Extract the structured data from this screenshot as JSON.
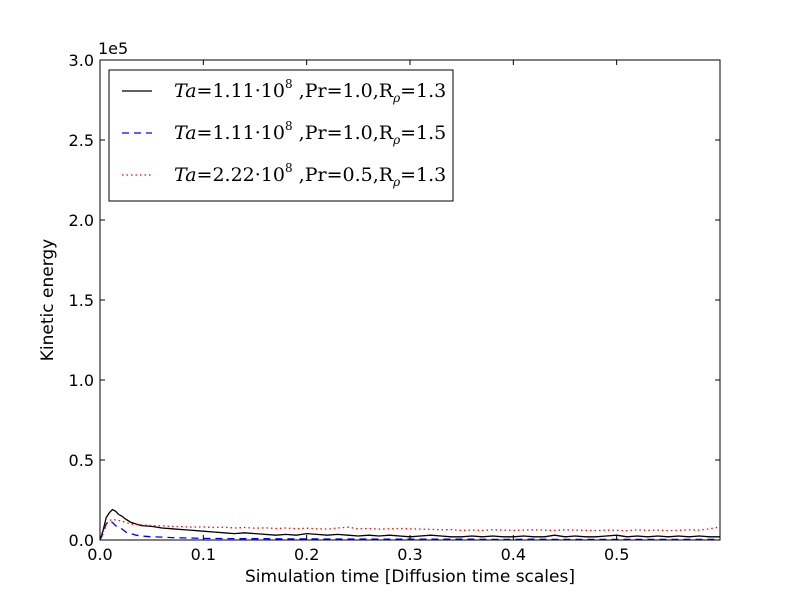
{
  "chart_data": {
    "type": "line",
    "xlabel": "Simulation time [Diffusion time scales]",
    "ylabel": "Kinetic energy",
    "offset_label": "1e5",
    "xlim": [
      0.0,
      0.6
    ],
    "ylim": [
      0.0,
      3.0
    ],
    "xticks": [
      "0.0",
      "0.1",
      "0.2",
      "0.3",
      "0.4",
      "0.5"
    ],
    "yticks": [
      "0.0",
      "0.5",
      "1.0",
      "1.5",
      "2.0",
      "2.5",
      "3.0"
    ],
    "grid": false,
    "legend_position": "upper-left",
    "series": [
      {
        "name": "Ta=1.11·10^8 ,Pr=1.0,Rρ=1.3",
        "color": "#000000",
        "style": "solid",
        "x": [
          0.0,
          0.003,
          0.006,
          0.009,
          0.012,
          0.015,
          0.018,
          0.021,
          0.025,
          0.03,
          0.035,
          0.04,
          0.05,
          0.06,
          0.07,
          0.08,
          0.09,
          0.1,
          0.11,
          0.12,
          0.13,
          0.14,
          0.15,
          0.16,
          0.17,
          0.18,
          0.19,
          0.2,
          0.21,
          0.22,
          0.23,
          0.24,
          0.25,
          0.26,
          0.27,
          0.28,
          0.29,
          0.3,
          0.31,
          0.32,
          0.33,
          0.34,
          0.35,
          0.36,
          0.37,
          0.38,
          0.39,
          0.4,
          0.41,
          0.42,
          0.43,
          0.44,
          0.45,
          0.46,
          0.47,
          0.48,
          0.49,
          0.5,
          0.51,
          0.52,
          0.53,
          0.54,
          0.55,
          0.56,
          0.57,
          0.58,
          0.59,
          0.6
        ],
        "y": [
          0.0,
          0.06,
          0.14,
          0.17,
          0.19,
          0.18,
          0.16,
          0.15,
          0.13,
          0.11,
          0.1,
          0.09,
          0.085,
          0.075,
          0.07,
          0.065,
          0.06,
          0.055,
          0.05,
          0.045,
          0.04,
          0.045,
          0.04,
          0.035,
          0.03,
          0.035,
          0.03,
          0.04,
          0.035,
          0.03,
          0.035,
          0.03,
          0.025,
          0.03,
          0.025,
          0.03,
          0.025,
          0.02,
          0.025,
          0.03,
          0.025,
          0.02,
          0.02,
          0.025,
          0.02,
          0.025,
          0.02,
          0.02,
          0.025,
          0.02,
          0.02,
          0.03,
          0.02,
          0.025,
          0.02,
          0.02,
          0.025,
          0.03,
          0.02,
          0.025,
          0.02,
          0.025,
          0.02,
          0.025,
          0.02,
          0.025,
          0.02,
          0.02
        ]
      },
      {
        "name": "Ta=1.11·10^8 ,Pr=1.0,Rρ=1.5",
        "color": "#0000ff",
        "style": "dashed",
        "x": [
          0.0,
          0.003,
          0.006,
          0.009,
          0.012,
          0.015,
          0.018,
          0.021,
          0.025,
          0.03,
          0.035,
          0.04,
          0.05,
          0.06,
          0.07,
          0.08,
          0.09,
          0.1,
          0.12,
          0.14,
          0.16,
          0.18,
          0.2,
          0.22,
          0.24,
          0.26,
          0.28,
          0.3,
          0.32,
          0.34,
          0.36,
          0.38,
          0.4,
          0.42,
          0.44,
          0.46,
          0.48,
          0.5,
          0.52,
          0.54,
          0.56,
          0.58,
          0.6
        ],
        "y": [
          0.0,
          0.04,
          0.1,
          0.12,
          0.11,
          0.09,
          0.08,
          0.07,
          0.05,
          0.04,
          0.03,
          0.025,
          0.02,
          0.018,
          0.015,
          0.013,
          0.012,
          0.01,
          0.009,
          0.008,
          0.008,
          0.007,
          0.007,
          0.006,
          0.006,
          0.006,
          0.005,
          0.005,
          0.005,
          0.005,
          0.005,
          0.004,
          0.004,
          0.005,
          0.004,
          0.004,
          0.004,
          0.004,
          0.004,
          0.004,
          0.004,
          0.004,
          0.004
        ]
      },
      {
        "name": "Ta=2.22·10^8 ,Pr=0.5,Rρ=1.3",
        "color": "#ff0000",
        "style": "dotted",
        "x": [
          0.0,
          0.003,
          0.006,
          0.009,
          0.012,
          0.015,
          0.02,
          0.025,
          0.03,
          0.04,
          0.05,
          0.06,
          0.07,
          0.08,
          0.09,
          0.1,
          0.11,
          0.12,
          0.13,
          0.14,
          0.15,
          0.16,
          0.17,
          0.18,
          0.19,
          0.2,
          0.21,
          0.22,
          0.23,
          0.24,
          0.25,
          0.26,
          0.27,
          0.28,
          0.29,
          0.3,
          0.31,
          0.32,
          0.33,
          0.34,
          0.35,
          0.36,
          0.37,
          0.38,
          0.39,
          0.4,
          0.41,
          0.42,
          0.43,
          0.44,
          0.45,
          0.46,
          0.47,
          0.48,
          0.49,
          0.5,
          0.51,
          0.52,
          0.53,
          0.54,
          0.55,
          0.56,
          0.57,
          0.58,
          0.59,
          0.6
        ],
        "y": [
          0.0,
          0.05,
          0.1,
          0.12,
          0.13,
          0.125,
          0.12,
          0.11,
          0.1,
          0.095,
          0.09,
          0.088,
          0.085,
          0.083,
          0.08,
          0.082,
          0.078,
          0.08,
          0.075,
          0.078,
          0.074,
          0.076,
          0.072,
          0.075,
          0.07,
          0.074,
          0.07,
          0.068,
          0.075,
          0.08,
          0.07,
          0.072,
          0.068,
          0.07,
          0.072,
          0.07,
          0.068,
          0.066,
          0.064,
          0.065,
          0.06,
          0.062,
          0.06,
          0.064,
          0.062,
          0.06,
          0.062,
          0.064,
          0.062,
          0.06,
          0.064,
          0.062,
          0.06,
          0.058,
          0.062,
          0.06,
          0.058,
          0.064,
          0.06,
          0.062,
          0.058,
          0.06,
          0.064,
          0.062,
          0.07,
          0.082
        ]
      }
    ],
    "legend": [
      {
        "prefix": "Ta",
        "val": "=1.11·10",
        "sup": "8",
        "rest1": " ,Pr=1.0,R",
        "sub": "ρ",
        "rest2": "=1.3"
      },
      {
        "prefix": "Ta",
        "val": "=1.11·10",
        "sup": "8",
        "rest1": " ,Pr=1.0,R",
        "sub": "ρ",
        "rest2": "=1.5"
      },
      {
        "prefix": "Ta",
        "val": "=2.22·10",
        "sup": "8",
        "rest1": " ,Pr=0.5,R",
        "sub": "ρ",
        "rest2": "=1.3"
      }
    ]
  }
}
